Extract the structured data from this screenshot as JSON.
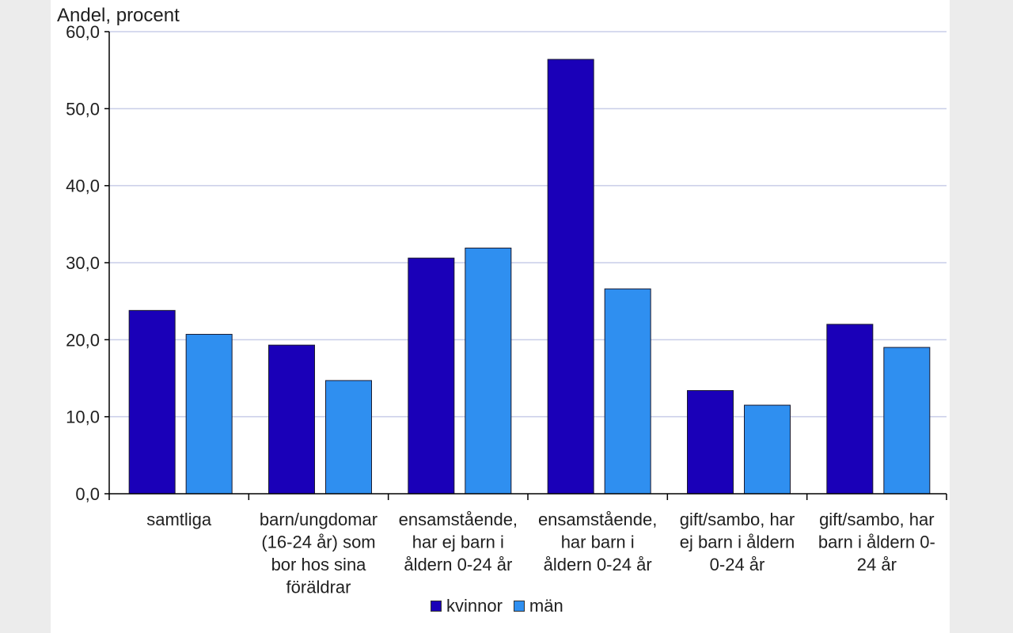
{
  "chart_data": {
    "type": "bar",
    "ylabel": "Andel, procent",
    "ylim": [
      0,
      60
    ],
    "yticks": [
      "0,0",
      "10,0",
      "20,0",
      "30,0",
      "40,0",
      "50,0",
      "60,0"
    ],
    "ytick_values": [
      0,
      10,
      20,
      30,
      40,
      50,
      60
    ],
    "grid": true,
    "legend_position": "bottom",
    "categories": [
      [
        "samtliga"
      ],
      [
        "barn/ungdomar",
        "(16-24 år) som",
        "bor hos sina",
        "föräldrar"
      ],
      [
        "ensamstående,",
        "har ej barn i",
        "åldern 0-24 år"
      ],
      [
        "ensamstående,",
        "har barn i",
        "åldern 0-24 år"
      ],
      [
        "gift/sambo, har",
        "ej barn i åldern",
        "0-24 år"
      ],
      [
        "gift/sambo, har",
        "barn i åldern 0-",
        "24 år"
      ]
    ],
    "series": [
      {
        "name": "kvinnor",
        "color": "#1a00b8",
        "values": [
          23.8,
          19.3,
          30.6,
          56.4,
          13.4,
          22.0
        ]
      },
      {
        "name": "män",
        "color": "#2f8ff0",
        "values": [
          20.7,
          14.7,
          31.9,
          26.6,
          11.5,
          19.0
        ]
      }
    ]
  }
}
